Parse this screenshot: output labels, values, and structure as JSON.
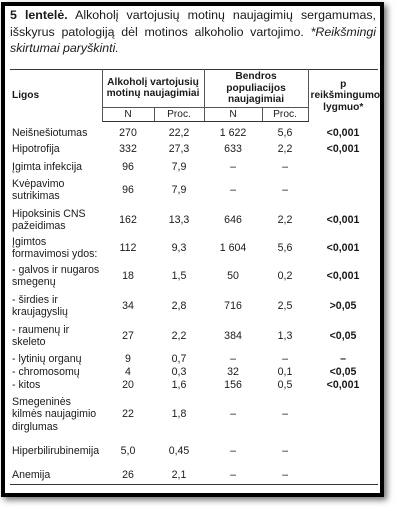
{
  "caption": {
    "number": "5 lentelė.",
    "text": " Alkoholį vartojusių motinų naujagimių sergamumas, išskyrus patologiją dėl motinos alkoholio vartojimo.",
    "note": " *Reikšmingi skirtumai paryškinti."
  },
  "table": {
    "header": {
      "ligos": "Ligos",
      "group1": "Alkoholį vartojusių motinų naujagimiai",
      "group2": "Bendros populiacijos naujagimiai",
      "pvalue": "p reikšmingumo lygmuo*",
      "n": "N",
      "proc": "Proc."
    },
    "rows": [
      {
        "name": "Neišnešiotumas",
        "n1": "270",
        "p1": "22,2",
        "n2": "1 622",
        "p2": "5,6",
        "p": "<0,001"
      },
      {
        "name": "Hipotrofija",
        "n1": "332",
        "p1": "27,3",
        "n2": "633",
        "p2": "2,2",
        "p": "<0,001"
      },
      {
        "name": "Įgimta infekcija",
        "n1": "96",
        "p1": "7,9",
        "n2": "–",
        "p2": "–",
        "p": ""
      },
      {
        "name": "Kvėpavimo sutrikimas",
        "n1": "96",
        "p1": "7,9",
        "n2": "–",
        "p2": "–",
        "p": ""
      },
      {
        "name": "Hipoksinis CNS pažeidimas",
        "n1": "162",
        "p1": "13,3",
        "n2": "646",
        "p2": "2,2",
        "p": "<0,001"
      },
      {
        "name": "Įgimtos formavimosi ydos:",
        "n1": "112",
        "p1": "9,3",
        "n2": "1 604",
        "p2": "5,6",
        "p": "<0,001"
      },
      {
        "name": "- galvos ir nugaros smegenų",
        "n1": "18",
        "p1": "1,5",
        "n2": "50",
        "p2": "0,2",
        "p": "<0,001"
      },
      {
        "name": "- širdies ir kraujagyslių",
        "n1": "34",
        "p1": "2,8",
        "n2": "716",
        "p2": "2,5",
        "p": ">0,05"
      },
      {
        "name": "- raumenų ir skeleto",
        "n1": "27",
        "p1": "2,2",
        "n2": "384",
        "p2": "1,3",
        "p": "<0,05"
      },
      {
        "name": "- lytinių organų",
        "n1": "9",
        "p1": "0,7",
        "n2": "–",
        "p2": "–",
        "p": "–"
      },
      {
        "name": "- chromosomų",
        "n1": "4",
        "p1": "0,3",
        "n2": "32",
        "p2": "0,1",
        "p": "<0,05"
      },
      {
        "name": "- kitos",
        "n1": "20",
        "p1": "1,6",
        "n2": "156",
        "p2": "0,5",
        "p": "<0,001"
      },
      {
        "name": "Smegeninės kilmės naujagimio dirglumas",
        "n1": "22",
        "p1": "1,8",
        "n2": "–",
        "p2": "–",
        "p": ""
      },
      {
        "name": "Hiperbilirubinemija",
        "n1": "5,0",
        "p1": "0,45",
        "n2": "–",
        "p2": "–",
        "p": ""
      },
      {
        "name": "Anemija",
        "n1": "26",
        "p1": "2,1",
        "n2": "–",
        "p2": "–",
        "p": ""
      }
    ]
  }
}
